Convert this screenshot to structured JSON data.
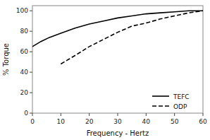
{
  "chart_data": {
    "type": "line",
    "xlabel": "Frequency - Hertz",
    "ylabel": "% Torque",
    "xlim": [
      0,
      60
    ],
    "ylim": [
      0,
      105
    ],
    "xticks": [
      0,
      10,
      20,
      30,
      40,
      50,
      60
    ],
    "yticks": [
      0,
      20,
      40,
      60,
      80,
      100
    ],
    "grid": false,
    "legend": "lower right",
    "series": [
      {
        "name": "TEFC",
        "color": "#000000",
        "line_style": "solid",
        "x": [
          0,
          3,
          6,
          10,
          15,
          20,
          25,
          30,
          35,
          40,
          45,
          50,
          55,
          60
        ],
        "values": [
          65,
          70,
          74,
          78,
          83,
          87,
          90,
          93,
          95,
          97,
          98,
          99,
          100,
          100
        ]
      },
      {
        "name": "ODP",
        "color": "#000000",
        "line_style": "dashed",
        "x": [
          10,
          13,
          16,
          20,
          25,
          30,
          35,
          40,
          45,
          50,
          55,
          60
        ],
        "values": [
          48,
          53,
          58,
          65,
          72,
          79,
          85,
          88,
          92,
          95,
          98,
          100
        ]
      }
    ]
  }
}
